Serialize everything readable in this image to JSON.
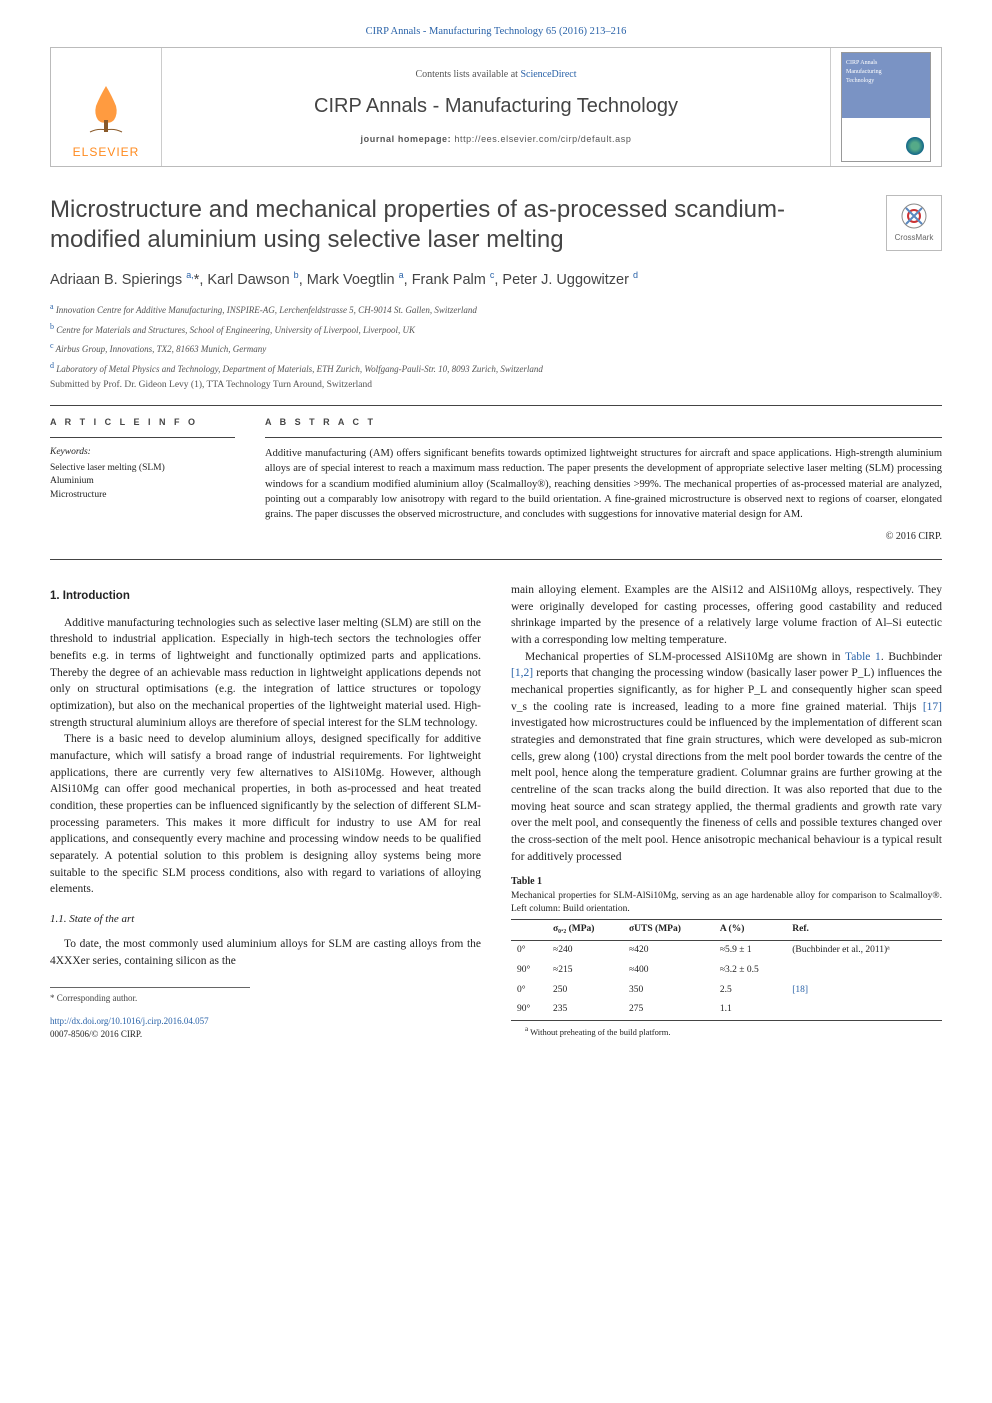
{
  "header": {
    "journal_ref_line": "CIRP Annals - Manufacturing Technology 65 (2016) 213–216",
    "contents_prefix": "Contents lists available at ",
    "contents_link": "ScienceDirect",
    "journal_name": "CIRP Annals - Manufacturing Technology",
    "homepage_label": "journal homepage:",
    "homepage_url": "http://ees.elsevier.com/cirp/default.asp",
    "elsevier_word": "ELSEVIER",
    "cover": {
      "line1": "CIRP Annals",
      "line2": "Manufacturing",
      "line3": "Technology"
    },
    "crossmark_label": "CrossMark"
  },
  "article": {
    "title": "Microstructure and mechanical properties of as-processed scandium-modified aluminium using selective laser melting",
    "authors_html": "Adriaan B. Spierings <sup>a,</sup>*, Karl Dawson <sup>b</sup>, Mark Voegtlin <sup>a</sup>, Frank Palm <sup>c</sup>, Peter J. Uggowitzer <sup>d</sup>",
    "affiliations": [
      {
        "sup": "a",
        "text": "Innovation Centre for Additive Manufacturing, INSPIRE-AG, Lerchenfeldstrasse 5, CH-9014 St. Gallen, Switzerland"
      },
      {
        "sup": "b",
        "text": "Centre for Materials and Structures, School of Engineering, University of Liverpool, Liverpool, UK"
      },
      {
        "sup": "c",
        "text": "Airbus Group, Innovations, TX2, 81663 Munich, Germany"
      },
      {
        "sup": "d",
        "text": "Laboratory of Metal Physics and Technology, Department of Materials, ETH Zurich, Wolfgang-Pauli-Str. 10, 8093 Zurich, Switzerland"
      }
    ],
    "submitted": "Submitted by Prof. Dr. Gideon Levy (1), TTA Technology Turn Around, Switzerland"
  },
  "info": {
    "heading": "A R T I C L E   I N F O",
    "keywords_label": "Keywords:",
    "keywords": "Selective laser melting (SLM)\nAluminium\nMicrostructure"
  },
  "abstract": {
    "heading": "A B S T R A C T",
    "text": "Additive manufacturing (AM) offers significant benefits towards optimized lightweight structures for aircraft and space applications. High-strength aluminium alloys are of special interest to reach a maximum mass reduction. The paper presents the development of appropriate selective laser melting (SLM) processing windows for a scandium modified aluminium alloy (Scalmalloy®), reaching densities >99%. The mechanical properties of as-processed material are analyzed, pointing out a comparably low anisotropy with regard to the build orientation. A fine-grained microstructure is observed next to regions of coarser, elongated grains. The paper discusses the observed microstructure, and concludes with suggestions for innovative material design for AM.",
    "copyright": "© 2016 CIRP."
  },
  "body": {
    "sec1_heading": "1.  Introduction",
    "p1": "Additive manufacturing technologies such as selective laser melting (SLM) are still on the threshold to industrial application. Especially in high-tech sectors the technologies offer benefits e.g. in terms of lightweight and functionally optimized parts and applications. Thereby the degree of an achievable mass reduction in lightweight applications depends not only on structural optimisations (e.g. the integration of lattice structures or topology optimization), but also on the mechanical properties of the lightweight material used. High-strength structural aluminium alloys are therefore of special interest for the SLM technology.",
    "p2": "There is a basic need to develop aluminium alloys, designed specifically for additive manufacture, which will satisfy a broad range of industrial requirements. For lightweight applications, there are currently very few alternatives to AlSi10Mg. However, although AlSi10Mg can offer good mechanical properties, in both as-processed and heat treated condition, these properties can be influenced significantly by the selection of different SLM-processing parameters. This makes it more difficult for industry to use AM for real applications, and consequently every machine and processing window needs to be qualified separately. A potential solution to this problem is designing alloy systems being more suitable to the specific SLM process conditions, also with regard to variations of alloying elements.",
    "sec11_heading": "1.1. State of the art",
    "p3": "To date, the most commonly used aluminium alloys for SLM are casting alloys from the 4XXXer series, containing silicon as the",
    "p4a": "main alloying element. Examples are the AlSi12 and AlSi10Mg alloys, respectively. They were originally developed for casting processes, offering good castability and reduced shrinkage imparted by the presence of a relatively large volume fraction of Al–Si eutectic with a corresponding low melting temperature.",
    "p4b_1": "Mechanical properties of SLM-processed AlSi10Mg are shown in ",
    "p4b_link1": "Table 1",
    "p4b_2": ". Buchbinder ",
    "p4b_link2": "[1,2]",
    "p4b_3": " reports that changing the processing window (basically laser power P_L) influences the mechanical properties significantly, as for higher P_L and consequently higher scan speed v_s the cooling rate is increased, leading to a more fine grained material. Thijs ",
    "p4b_link3": "[17]",
    "p4b_4": " investigated how microstructures could be influenced by the implementation of different scan strategies and demonstrated that fine grain structures, which were developed as sub-micron cells, grew along ⟨100⟩ crystal directions from the melt pool border towards the centre of the melt pool, hence along the temperature gradient. Columnar grains are further growing at the centreline of the scan tracks along the build direction. It was also reported that due to the moving heat source and scan strategy applied, the thermal gradients and growth rate vary over the melt pool, and consequently the fineness of cells and possible textures changed over the cross-section of the melt pool. Hence anisotropic mechanical behaviour is a typical result for additively processed"
  },
  "table1": {
    "label": "Table 1",
    "caption": "Mechanical properties for SLM-AlSi10Mg, serving as an age hardenable alloy for comparison to Scalmalloy®. Left column: Build orientation.",
    "columns": [
      "",
      "σ₀.₂ (MPa)",
      "σUTS (MPa)",
      "A (%)",
      "Ref."
    ],
    "rows": [
      [
        "0°",
        "≈240",
        "≈420",
        "≈5.9 ± 1",
        "(Buchbinder et al., 2011)ᵃ"
      ],
      [
        "90°",
        "≈215",
        "≈400",
        "≈3.2 ± 0.5",
        ""
      ],
      [
        "0°",
        "250",
        "350",
        "2.5",
        "[18]"
      ],
      [
        "90°",
        "235",
        "275",
        "1.1",
        ""
      ]
    ],
    "footnote_sup": "a",
    "footnote": "Without preheating of the build platform."
  },
  "footer": {
    "corresponding": "* Corresponding author.",
    "doi_url": "http://dx.doi.org/10.1016/j.cirp.2016.04.057",
    "issn_line": "0007-8506/© 2016 CIRP."
  },
  "colors": {
    "link": "#2962a8",
    "elsevier_orange": "#ff8a1e",
    "text": "#222",
    "rule": "#444"
  }
}
